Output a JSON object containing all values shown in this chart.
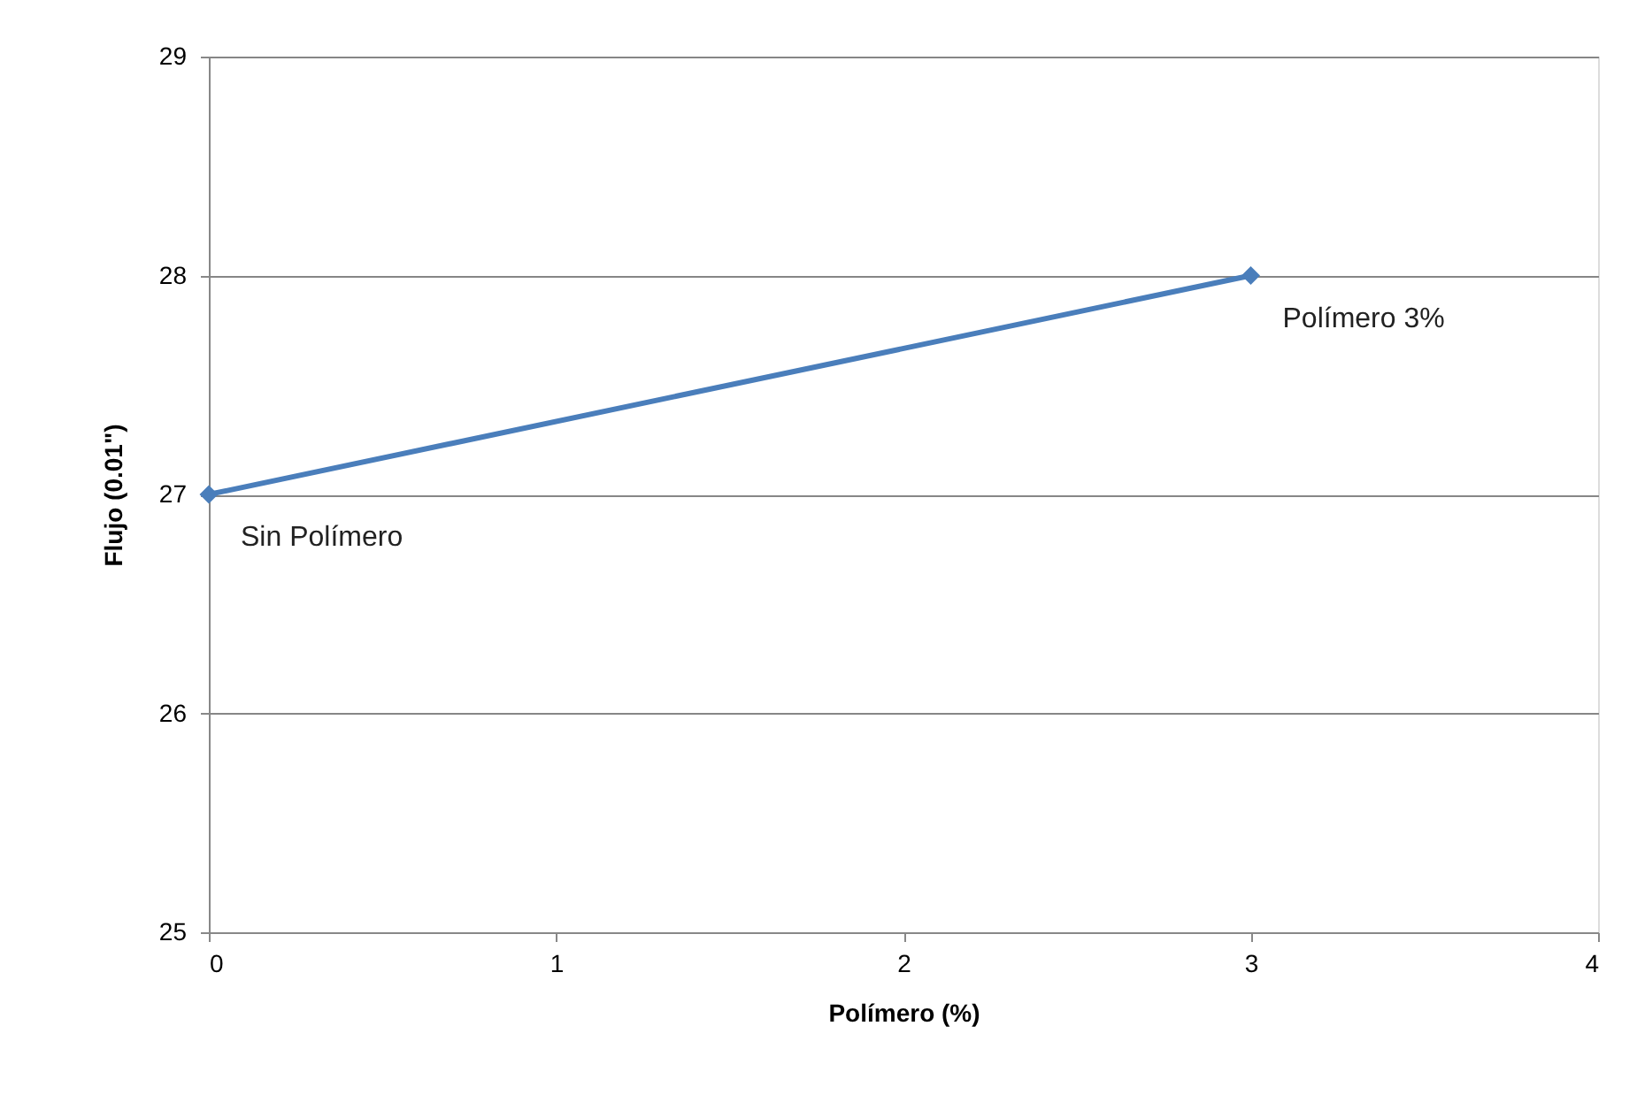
{
  "chart_data": {
    "type": "line",
    "xlabel": "Polímero (%)",
    "ylabel": "Flujo (0.01\")",
    "x": [
      0,
      3
    ],
    "series": [
      {
        "color": "#4a7ebb",
        "values": [
          27,
          28
        ]
      }
    ],
    "xlim": [
      0,
      4
    ],
    "xticks": [
      0,
      1,
      2,
      3,
      4
    ],
    "ylim": [
      25,
      29
    ],
    "yticks": [
      25,
      26,
      27,
      28,
      29
    ],
    "grid": "y",
    "marker": "diamond",
    "line_style": "solid",
    "annotations": [
      {
        "text": "Sin Polímero",
        "x": 0,
        "y": 27
      },
      {
        "text": "Polímero 3%",
        "x": 3,
        "y": 28
      }
    ]
  }
}
